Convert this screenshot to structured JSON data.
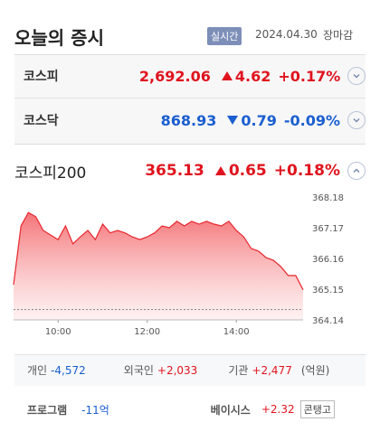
{
  "header": {
    "title": "오늘의 증시",
    "badge": "실시간",
    "date": "2024.04.30",
    "status": "장마감"
  },
  "indices": [
    {
      "name": "코스피",
      "value": "2,692.06",
      "change": "4.62",
      "percent": "+0.17%"
    },
    {
      "name": "코스닥",
      "value": "868.93",
      "change": "0.79",
      "percent": "-0.09%"
    },
    {
      "name": "코스피200",
      "value": "365.13",
      "change": "0.65",
      "percent": "+0.18%"
    }
  ],
  "chart_data": {
    "type": "line",
    "color": "#e8262d",
    "x": [
      540,
      550,
      560,
      570,
      580,
      590,
      600,
      610,
      620,
      630,
      640,
      650,
      660,
      670,
      680,
      690,
      700,
      710,
      720,
      730,
      740,
      750,
      760,
      770,
      780,
      790,
      800,
      810,
      820,
      830,
      840,
      850,
      860,
      870,
      880,
      890,
      900,
      910,
      920,
      930
    ],
    "values": [
      365.3,
      367.23,
      367.67,
      367.53,
      367.08,
      366.93,
      366.78,
      367.23,
      366.64,
      366.87,
      367.08,
      366.78,
      367.29,
      367.0,
      367.08,
      367.0,
      366.87,
      366.78,
      366.87,
      367.0,
      367.23,
      367.17,
      367.38,
      367.23,
      367.38,
      367.29,
      367.38,
      367.29,
      367.23,
      367.38,
      367.08,
      366.87,
      366.49,
      366.4,
      366.19,
      366.1,
      365.89,
      365.6,
      365.6,
      365.13
    ],
    "xlim": [
      540,
      930
    ],
    "xticks": [
      {
        "value": 600,
        "label": "10:00"
      },
      {
        "value": 720,
        "label": "12:00"
      },
      {
        "value": 840,
        "label": "14:00"
      }
    ],
    "ylim": [
      364.14,
      368.18
    ],
    "yticks": [
      364.14,
      365.15,
      366.16,
      367.17,
      368.18
    ],
    "prev_close": 364.48
  },
  "investors": {
    "items": [
      {
        "label": "개인",
        "value": "-4,572"
      },
      {
        "label": "외국인",
        "value": "+2,033"
      },
      {
        "label": "기관",
        "value": "+2,477"
      }
    ],
    "unit": "(억원)"
  },
  "program": {
    "label": "프로그램",
    "value": "-11억",
    "basis_label": "베이시스",
    "basis_value": "+2.32",
    "basis_state": "콘탱고"
  }
}
